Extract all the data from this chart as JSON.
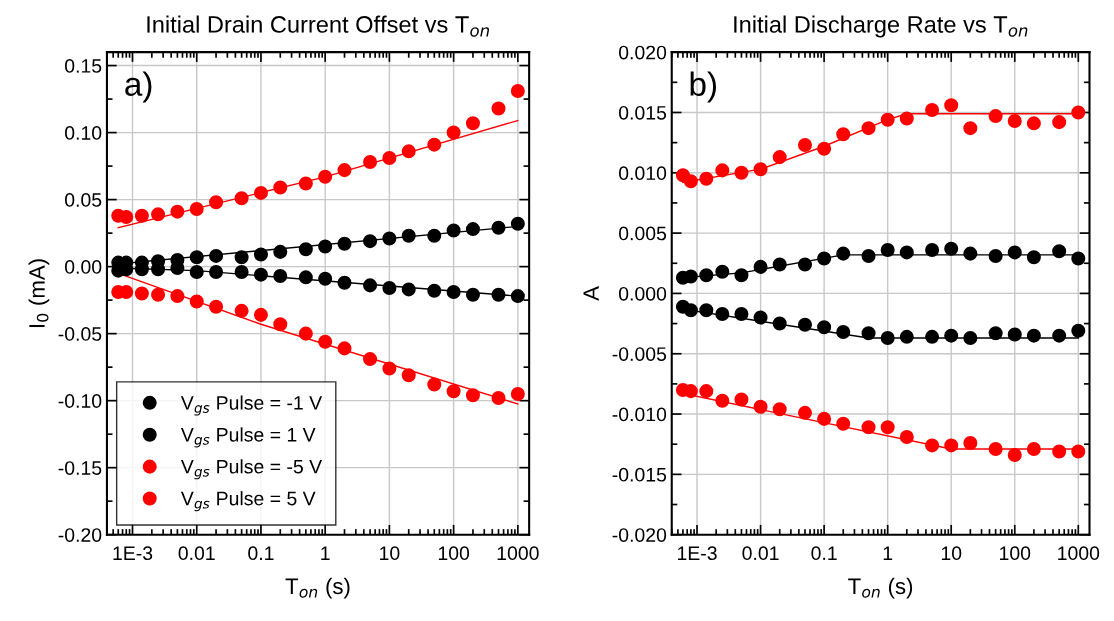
{
  "chart_data": [
    {
      "type": "scatter",
      "title": "Initial Drain Current Offset vs T$_{on}$",
      "xlabel": "T$_{on}$ (s)",
      "ylabel": "I$_{0}$ (mA)",
      "annotations": [
        "a)"
      ],
      "log": "x",
      "grid": true,
      "legend": "bottom left",
      "xlim": [
        0.0004,
        1500
      ],
      "xticks": [
        {
          "value": 0.001,
          "label": "1E-3"
        },
        0.01,
        0.1,
        1,
        10,
        100,
        1000
      ],
      "ylim": [
        -0.2,
        0.16
      ],
      "yticks": [
        {
          "value": -0.2,
          "label": "-0.20"
        },
        -0.15,
        {
          "value": -0.1,
          "label": "-0.10"
        },
        -0.05,
        {
          "value": 0,
          "label": "0.00"
        },
        0.05,
        {
          "value": 0.1,
          "label": "0.10"
        },
        0.15
      ],
      "x": [
        0.0006,
        0.0008,
        0.0014,
        0.0025,
        0.005,
        0.01,
        0.02,
        0.05,
        0.1,
        0.2,
        0.5,
        1,
        2,
        5,
        10,
        20,
        50,
        100,
        200,
        500,
        1000
      ],
      "series": [
        {
          "name": "V$_{gs}$ Pulse = -1 V",
          "color": "#000000",
          "marker": "circle",
          "values": [
            -0.003,
            -0.002,
            -0.002,
            -0.002,
            -0.001,
            -0.004,
            -0.004,
            -0.004,
            -0.006,
            -0.007,
            -0.008,
            -0.009,
            -0.012,
            -0.014,
            -0.016,
            -0.017,
            -0.018,
            -0.019,
            -0.021,
            -0.021,
            -0.022
          ]
        },
        {
          "name": "V$_{gs}$ Pulse = 1 V",
          "color": "#000000",
          "marker": "circle",
          "values": [
            0.003,
            0.003,
            0.003,
            0.004,
            0.005,
            0.007,
            0.008,
            0.007,
            0.009,
            0.011,
            0.013,
            0.015,
            0.017,
            0.019,
            0.021,
            0.023,
            0.023,
            0.027,
            0.028,
            0.029,
            0.032
          ]
        },
        {
          "name": "V$_{gs}$ Pulse = -5 V",
          "color": "#ff0000",
          "marker": "circle",
          "values": [
            -0.019,
            -0.019,
            -0.02,
            -0.021,
            -0.022,
            -0.026,
            -0.03,
            -0.033,
            -0.036,
            -0.043,
            -0.05,
            -0.056,
            -0.061,
            -0.069,
            -0.076,
            -0.081,
            -0.088,
            -0.093,
            -0.096,
            -0.098,
            -0.095
          ]
        },
        {
          "name": "V$_{gs}$ Pulse = 5 V",
          "color": "#ff0000",
          "marker": "circle",
          "values": [
            0.038,
            0.037,
            0.038,
            0.039,
            0.041,
            0.043,
            0.048,
            0.051,
            0.055,
            0.059,
            0.062,
            0.067,
            0.072,
            0.078,
            0.081,
            0.086,
            0.091,
            0.1,
            0.107,
            0.118,
            0.131
          ]
        },
        {
          "type": "line",
          "color": "#000000",
          "x": [
            0.0006,
            0.01,
            1000
          ],
          "values": [
            -0.001,
            -0.003,
            -0.022
          ]
        },
        {
          "type": "line",
          "color": "#000000",
          "x": [
            0.0006,
            1000
          ],
          "values": [
            0.002,
            0.03
          ]
        },
        {
          "type": "line",
          "color": "#ff0000",
          "x": [
            0.0006,
            0.1,
            1000
          ],
          "values": [
            -0.005,
            -0.043,
            -0.1025
          ]
        },
        {
          "type": "line",
          "color": "#ff0000",
          "x": [
            0.0006,
            1,
            1000
          ],
          "values": [
            0.029,
            0.067,
            0.109
          ]
        }
      ]
    },
    {
      "type": "scatter",
      "title": "Initial Discharge Rate vs T$_{on}$",
      "xlabel": "T$_{on}$ (s)",
      "ylabel": "A",
      "annotations": [
        "b)"
      ],
      "log": "x",
      "grid": true,
      "xlim": [
        0.0004,
        1500
      ],
      "xticks": [
        {
          "value": 0.001,
          "label": "1E-3"
        },
        0.01,
        0.1,
        1,
        10,
        100,
        1000
      ],
      "ylim": [
        -0.02,
        0.02
      ],
      "yticks": [
        {
          "value": -0.02,
          "label": "-0.020"
        },
        -0.015,
        {
          "value": -0.01,
          "label": "-0.010"
        },
        -0.005,
        {
          "value": 0,
          "label": "0.000"
        },
        0.005,
        {
          "value": 0.01,
          "label": "0.010"
        },
        0.015,
        {
          "value": 0.02,
          "label": "0.020"
        }
      ],
      "x": [
        0.0006,
        0.0008,
        0.0014,
        0.0025,
        0.005,
        0.01,
        0.02,
        0.05,
        0.1,
        0.2,
        0.5,
        1,
        2,
        5,
        10,
        20,
        50,
        100,
        200,
        500,
        1000
      ],
      "series": [
        {
          "color": "#000000",
          "marker": "circle",
          "values": [
            0.0013,
            0.0014,
            0.0015,
            0.0018,
            0.0015,
            0.0022,
            0.0024,
            0.0024,
            0.0029,
            0.0033,
            0.0031,
            0.0036,
            0.0034,
            0.0036,
            0.0037,
            0.0033,
            0.0031,
            0.0034,
            0.003,
            0.0035,
            0.0029
          ]
        },
        {
          "color": "#000000",
          "marker": "circle",
          "values": [
            -0.0011,
            -0.0014,
            -0.0014,
            -0.0017,
            -0.0017,
            -0.002,
            -0.0025,
            -0.0026,
            -0.0028,
            -0.0032,
            -0.0033,
            -0.0037,
            -0.0036,
            -0.0036,
            -0.0035,
            -0.0037,
            -0.0033,
            -0.0034,
            -0.0035,
            -0.0035,
            -0.0031
          ]
        },
        {
          "color": "#ff0000",
          "marker": "circle",
          "values": [
            0.0098,
            0.0093,
            0.0095,
            0.0102,
            0.01,
            0.0103,
            0.0113,
            0.0123,
            0.012,
            0.0132,
            0.0137,
            0.0144,
            0.0145,
            0.0152,
            0.0156,
            0.0137,
            0.0147,
            0.0143,
            0.0141,
            0.0142,
            0.015
          ]
        },
        {
          "color": "#ff0000",
          "marker": "circle",
          "values": [
            -0.008,
            -0.0081,
            -0.0081,
            -0.0089,
            -0.0088,
            -0.0094,
            -0.0096,
            -0.0099,
            -0.0104,
            -0.0108,
            -0.0111,
            -0.0111,
            -0.0119,
            -0.0126,
            -0.0126,
            -0.0124,
            -0.0129,
            -0.0134,
            -0.0129,
            -0.0131,
            -0.0131
          ]
        },
        {
          "type": "line",
          "color": "#000000",
          "x": [
            0.0006,
            0.005,
            0.2,
            1000
          ],
          "values": [
            0.0013,
            0.0017,
            0.0032,
            0.0032
          ]
        },
        {
          "type": "line",
          "color": "#000000",
          "x": [
            0.0006,
            0.5,
            1000
          ],
          "values": [
            -0.0013,
            -0.0037,
            -0.0037
          ]
        },
        {
          "type": "line",
          "color": "#ff0000",
          "x": [
            0.0006,
            0.01,
            0.1,
            1,
            2,
            1000
          ],
          "values": [
            0.0092,
            0.0103,
            0.0122,
            0.0144,
            0.0149,
            0.0149
          ]
        },
        {
          "type": "line",
          "color": "#ff0000",
          "x": [
            0.0006,
            10,
            1000
          ],
          "values": [
            -0.0083,
            -0.0129,
            -0.0129
          ]
        }
      ]
    }
  ]
}
